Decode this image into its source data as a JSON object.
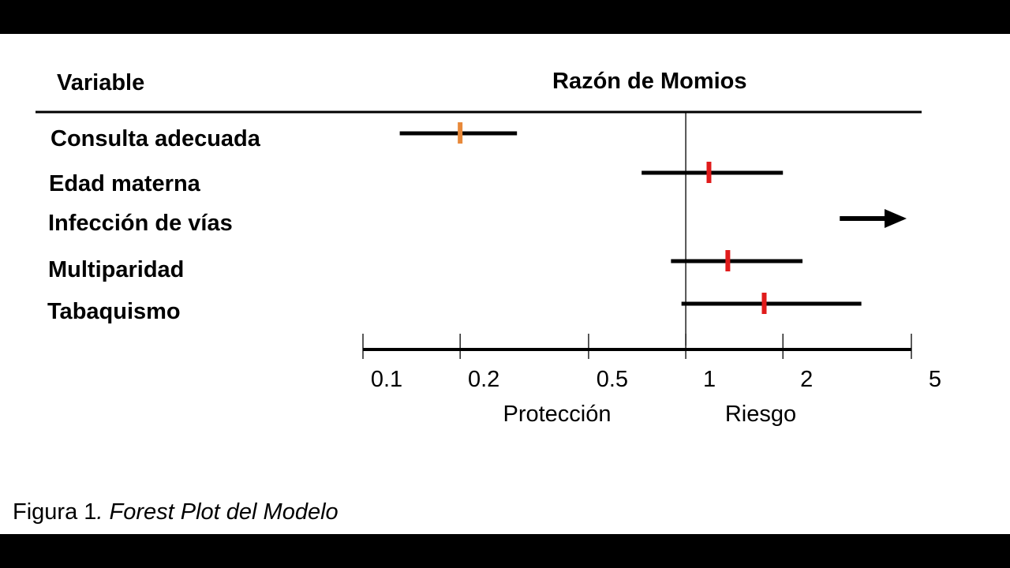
{
  "chart_data": {
    "type": "forest",
    "column_headers": {
      "variable": "Variable",
      "effect": "Razón de Momios"
    },
    "x_axis": {
      "scale": "log",
      "ticks": [
        0.1,
        0.2,
        0.5,
        1,
        2,
        5
      ],
      "tick_labels": [
        "0.1",
        "0.2",
        "0.5",
        "1",
        "2",
        "5"
      ],
      "xlim": [
        0.1,
        5
      ],
      "reference_line": 1,
      "region_labels": {
        "left": "Protección",
        "right": "Riesgo"
      }
    },
    "rows": [
      {
        "variable": "Consulta adecuada",
        "estimate": 0.2,
        "ci_low": 0.13,
        "ci_high": 0.3,
        "color": "#e8893a"
      },
      {
        "variable": "Edad materna",
        "estimate": 1.18,
        "ci_low": 0.73,
        "ci_high": 2.0,
        "color": "#e01b1b"
      },
      {
        "variable": "Infección de vías",
        "estimate": null,
        "ci_low": 3.0,
        "ci_high": 5,
        "off_scale": true,
        "color": "#000000"
      },
      {
        "variable": "Multiparidad",
        "estimate": 1.35,
        "ci_low": 0.9,
        "ci_high": 2.3,
        "color": "#e01b1b"
      },
      {
        "variable": "Tabaquismo",
        "estimate": 1.75,
        "ci_low": 0.97,
        "ci_high": 3.5,
        "color": "#e01b1b"
      }
    ]
  },
  "caption": {
    "prefix": "Figura 1",
    "italic": ". Forest Plot del  Modelo"
  },
  "colors": {
    "lines": "#000000",
    "background": "#ffffff",
    "letterbox": "#000000"
  }
}
